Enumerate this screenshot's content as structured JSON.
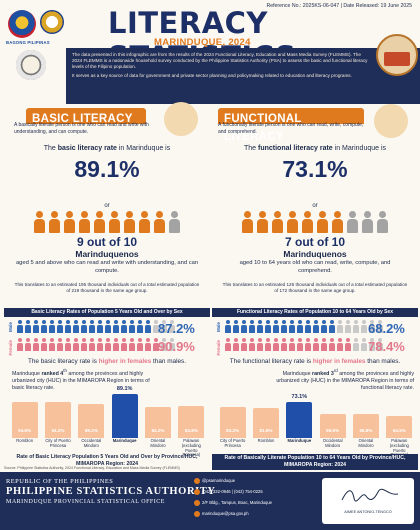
{
  "header": {
    "reference": "Reference No.: 2025KS-06-047 | Date Released: 19 June 2025",
    "title": "LITERACY STATISTICS",
    "subtitle": "MARINDUQUE, 2024",
    "bagong": "BAGONG PILIPINAS",
    "para1": "The data presented in this infographic are from the results of the 2024 Functional Literacy, Education and Mass Media Survey (FLEMMS). The 2024 FLEMMS is a nationwide household survey conducted by the Philippine Statistics Authority (PSA) to assess the basic and functional literacy levels of the Filipino population.",
    "para2": "It serves as a key source of data for government and private sector planning and policymaking related to education and literacy programs."
  },
  "basic": {
    "title": "BASIC LITERACY",
    "desc": "A basically literate person is one who can read and write with understanding, and can compute.",
    "rate_pre": "The ",
    "rate_bold": "basic literacy rate",
    "rate_post": " in Marinduque is",
    "rate": "89.1%",
    "or": "or",
    "out_of": "9 out of 10",
    "people": "Marinduquenos",
    "aged": "aged 5 and above who can read and write with understanding, and can compute.",
    "translates": "This translates to an estimated 195 thousand individuals out of a total estimated population of 219 thousand in the same age group.",
    "figures_on": 9,
    "figures_total": 10,
    "sex_title": "Basic Literacy Rates of Population 5 Years Old and Over by Sex",
    "male_label": "Male",
    "female_label": "Female",
    "male_rate": "87.2%",
    "female_rate": "90.9%",
    "male_value": 87.2,
    "female_value": 90.9,
    "higher_pre": "The basic literacy rate is ",
    "higher_bold": "higher in females",
    "higher_post": " than males.",
    "rank_pre": "Marinduque ",
    "rank_bold": "ranked 4",
    "rank_sup": "th",
    "rank_post": " among the provinces and highly urbanized city (HUC) in the MIMAROPA Region in terms of basic literacy rate.",
    "bar_title": "Rate of Basic Literacy Population 5 Years Old and Over by Province/HUC, MIMAROPA Region: 2024"
  },
  "functional": {
    "title": "FUNCTIONAL LITERACY",
    "desc": "A functionally literate person is one who can read, write, compute, and comprehend.",
    "rate_pre": "The ",
    "rate_bold": "functional literacy rate",
    "rate_post": " in Marinduque is",
    "rate": "73.1%",
    "or": "or",
    "out_of": "7 out of 10",
    "people": "Marinduquenos",
    "aged": "aged 10 to 64 years old who can read, write, compute, and comprehend.",
    "translates": "This translates to an estimated 126 thousand individuals out of a total estimated population of 172 thousand in the same age group.",
    "figures_on": 7,
    "figures_total": 10,
    "sex_title": "Functional Literacy Rates of Population 10 to 64 Years Old by Sex",
    "male_label": "Male",
    "female_label": "Female",
    "male_rate": "68.2%",
    "female_rate": "78.4%",
    "male_value": 68.2,
    "female_value": 78.4,
    "higher_pre": "The functional literacy rate is ",
    "higher_bold": "higher in females",
    "higher_post": " than males.",
    "rank_pre": "Marinduque ",
    "rank_bold": "ranked 3",
    "rank_sup": "rd",
    "rank_post": " among the provinces and highly urbanized city (HUC) in the MIMAROPA Region in terms of functional literacy rate.",
    "bar_title": "Rate of Basically Literate Population 10 to 64 Years Old by Province/HUC, MIMAROPA Region: 2024"
  },
  "chart_data": [
    {
      "type": "bar",
      "categories": [
        "Romblon",
        "City of Puerto Princesa",
        "Occidental Mindoro",
        "Marinduque",
        "Oriental Mindoro",
        "Palawan (excluding Puerto Princesa)"
      ],
      "values": [
        94.6,
        94.2,
        89.2,
        89.1,
        84.2,
        84.8
      ],
      "value_labels": [
        "94.6%",
        "94.2%",
        "89.2%",
        "89.1%",
        "84.2%",
        "84.8%"
      ],
      "highlight": "Marinduque",
      "title": "Rate of Basic Literacy Population 5 Years Old and Over by Province/HUC, MIMAROPA Region: 2024",
      "ylim": [
        0,
        100
      ]
    },
    {
      "type": "bar",
      "categories": [
        "City of Puerto Princesa",
        "Romblon",
        "Marinduque",
        "Occidental Mindoro",
        "Oriental Mindoro",
        "Palawan (excluding Puerto Princesa)"
      ],
      "values": [
        83.2,
        81.9,
        73.1,
        69.6,
        68.8,
        64.5
      ],
      "value_labels": [
        "83.2%",
        "81.9%",
        "73.1%",
        "69.6%",
        "68.8%",
        "64.5%"
      ],
      "highlight": "Marinduque",
      "title": "Rate of Basically Literate Population 10 to 64 Years Old by Province/HUC, MIMAROPA Region: 2024",
      "ylim": [
        0,
        100
      ]
    }
  ],
  "source": "Source: Philippine Statistics Authority, 2024 Functional Literacy, Education and Mass Media Survey (FLEMMS)",
  "footer": {
    "republic": "REPUBLIC OF THE PHILIPPINES",
    "psa": "PHILIPPINE STATISTICS AUTHORITY",
    "office": "MARINDUQUE PROVINCIAL STATISTICAL OFFICE",
    "contacts": [
      {
        "icon": "globe-icon",
        "text": "@psamarinduque"
      },
      {
        "icon": "phone-icon",
        "text": "(042) 332-0946 | (042) 754-0225"
      },
      {
        "icon": "location-icon",
        "text": "2/F Bldg., Tampus, Boac, Marinduque"
      },
      {
        "icon": "mail-icon",
        "text": "marinduque@psa.gov.ph"
      }
    ],
    "signatory": "AIMEE ANTONIO-TENGCO"
  }
}
